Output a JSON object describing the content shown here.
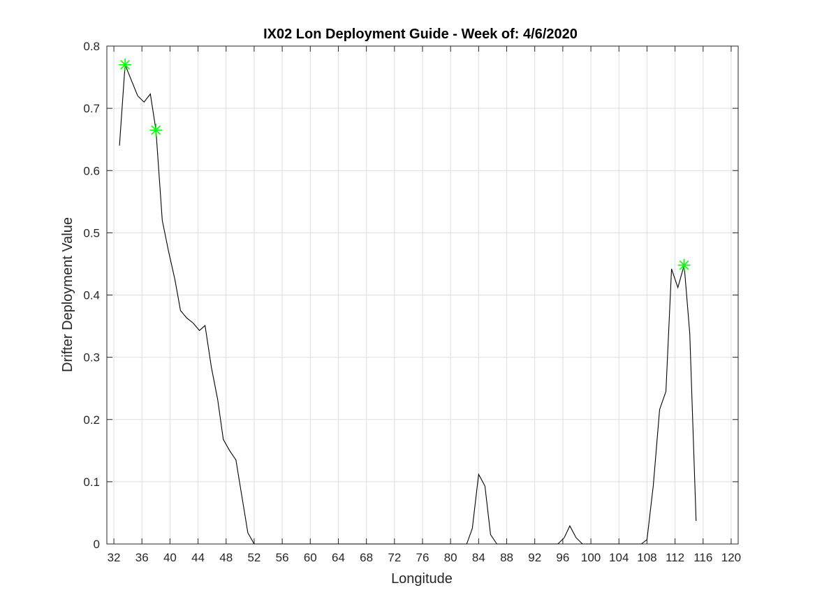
{
  "chart_data": {
    "type": "line",
    "title": "IX02 Lon Deployment Guide - Week of: 4/6/2020",
    "xlabel": "Longitude",
    "ylabel": "Drifter Deployment Value",
    "xlim": [
      31,
      121
    ],
    "ylim": [
      0,
      0.8
    ],
    "xticks": [
      32,
      36,
      40,
      44,
      48,
      52,
      56,
      60,
      64,
      68,
      72,
      76,
      80,
      84,
      88,
      92,
      96,
      100,
      104,
      108,
      112,
      116,
      120
    ],
    "yticks": [
      0,
      0.1,
      0.2,
      0.3,
      0.4,
      0.5,
      0.6,
      0.7,
      0.8
    ],
    "grid": true,
    "colors": {
      "line": "#000000",
      "markers": "#00ff00",
      "grid": "#dfdfdf",
      "axes": "#262626"
    },
    "series": [
      {
        "x": [
          32.8,
          33.6,
          34.5,
          35.4,
          36.3,
          37.2,
          38.0,
          38.9,
          39.8,
          40.7,
          41.5,
          42.4,
          43.3,
          44.2,
          45.0,
          45.9,
          46.8,
          47.6,
          48.5,
          49.4,
          50.3,
          51.1,
          52.0,
          60.0,
          70.0,
          80.0,
          82.3,
          83.1,
          84.0,
          84.9,
          85.7,
          86.6,
          87.5,
          90.0,
          95.3,
          96.2,
          97.0,
          97.9,
          98.8,
          100.0,
          105.0,
          107.2,
          108.0,
          108.9,
          109.8,
          110.7,
          111.5,
          112.4,
          113.3,
          114.1,
          115.0
        ],
        "y": [
          0.64,
          0.77,
          0.745,
          0.72,
          0.71,
          0.723,
          0.665,
          0.52,
          0.47,
          0.425,
          0.375,
          0.363,
          0.355,
          0.343,
          0.351,
          0.284,
          0.232,
          0.168,
          0.15,
          0.135,
          0.073,
          0.018,
          0.0,
          0.0,
          0.0,
          0.0,
          0.0,
          0.025,
          0.112,
          0.093,
          0.015,
          0.0,
          0.0,
          0.0,
          0.0,
          0.01,
          0.029,
          0.01,
          0.0,
          0.0,
          0.0,
          0.0,
          0.007,
          0.094,
          0.216,
          0.245,
          0.442,
          0.412,
          0.448,
          0.338,
          0.037
        ]
      }
    ],
    "markers": {
      "symbol": "asterisk",
      "points": [
        {
          "x": 33.6,
          "y": 0.77
        },
        {
          "x": 38.0,
          "y": 0.665
        },
        {
          "x": 113.3,
          "y": 0.448
        }
      ]
    }
  }
}
